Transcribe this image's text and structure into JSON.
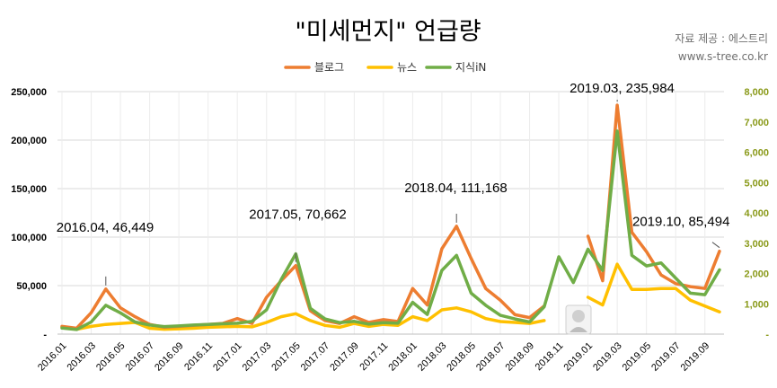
{
  "title": "\"미세먼지\" 언급량",
  "source": {
    "line1": "자료 제공 : 에스트리",
    "line2": "www.s-tree.co.kr"
  },
  "colors": {
    "blog": "#ED7D31",
    "news": "#FFC000",
    "jisik": "#70AD47",
    "grid": "#d9d9d9",
    "right_axis_text": "#8a9a1a"
  },
  "chart_data": {
    "type": "line",
    "x": [
      "2016.01",
      "2016.02",
      "2016.03",
      "2016.04",
      "2016.05",
      "2016.06",
      "2016.07",
      "2016.08",
      "2016.09",
      "2016.10",
      "2016.11",
      "2016.12",
      "2017.01",
      "2017.02",
      "2017.03",
      "2017.04",
      "2017.05",
      "2017.06",
      "2017.07",
      "2017.08",
      "2017.09",
      "2017.10",
      "2017.11",
      "2017.12",
      "2018.01",
      "2018.02",
      "2018.03",
      "2018.04",
      "2018.05",
      "2018.06",
      "2018.07",
      "2018.08",
      "2018.09",
      "2018.10",
      "2018.11",
      "2018.12",
      "2019.01",
      "2019.02",
      "2019.03",
      "2019.04",
      "2019.05",
      "2019.06",
      "2019.07",
      "2019.08",
      "2019.09",
      "2019.10"
    ],
    "x_tick_labels": [
      "2016.01",
      "2016.03",
      "2016.05",
      "2016.07",
      "2016.09",
      "2016.11",
      "2017.01",
      "2017.03",
      "2017.05",
      "2017.07",
      "2017.09",
      "2017.11",
      "2018.01",
      "2018.03",
      "2018.05",
      "2018.07",
      "2018.09",
      "2018.11",
      "2019.01",
      "2019.03",
      "2019.05",
      "2019.07",
      "2019.09"
    ],
    "y_left": {
      "range": [
        0,
        250000
      ],
      "ticks": [
        0,
        50000,
        100000,
        150000,
        200000,
        250000
      ],
      "tick_labels": [
        "-",
        "50,000",
        "100,000",
        "150,000",
        "200,000",
        "250,000"
      ]
    },
    "y_right": {
      "range": [
        0,
        8000
      ],
      "ticks": [
        0,
        1000,
        2000,
        3000,
        4000,
        5000,
        6000,
        7000,
        8000
      ],
      "tick_labels": [
        "-",
        "1,000",
        "2,000",
        "3,000",
        "4,000",
        "5,000",
        "6,000",
        "7,000",
        "8,000"
      ]
    },
    "series": [
      {
        "name": "블로그",
        "axis": "left",
        "values": [
          8000,
          6000,
          22000,
          46449,
          27000,
          18000,
          10000,
          7000,
          8000,
          9000,
          10000,
          11000,
          16000,
          11000,
          38000,
          55000,
          70662,
          24000,
          14000,
          11000,
          18000,
          12000,
          15000,
          13000,
          47000,
          30000,
          88000,
          111168,
          78000,
          47000,
          35000,
          20000,
          17000,
          29000,
          null,
          null,
          101000,
          55000,
          235984,
          105000,
          85000,
          61000,
          52000,
          49000,
          47000,
          85494
        ]
      },
      {
        "name": "뉴스",
        "axis": "left",
        "values": [
          7000,
          5000,
          8000,
          10000,
          11000,
          12000,
          6000,
          5000,
          5500,
          6000,
          7000,
          7500,
          8000,
          7500,
          12000,
          18000,
          21000,
          14000,
          9000,
          7000,
          11000,
          8000,
          10000,
          9000,
          18000,
          14000,
          25000,
          27000,
          23000,
          16000,
          13000,
          12000,
          11000,
          14000,
          null,
          null,
          38000,
          30000,
          72000,
          46000,
          46000,
          47000,
          47000,
          35000,
          29000,
          23000
        ]
      },
      {
        "name": "지식iN",
        "axis": "right",
        "values": [
          200,
          150,
          400,
          950,
          700,
          400,
          300,
          250,
          270,
          300,
          320,
          340,
          360,
          420,
          800,
          1800,
          2650,
          850,
          500,
          380,
          420,
          330,
          380,
          360,
          1050,
          650,
          2100,
          2600,
          1350,
          950,
          620,
          500,
          400,
          900,
          2550,
          1700,
          2800,
          2100,
          6700,
          2600,
          2250,
          2350,
          1850,
          1350,
          1300,
          2120
        ]
      }
    ],
    "annotations": [
      {
        "label": "2016.04,  46,449",
        "series": "블로그",
        "x": "2016.04"
      },
      {
        "label": "2017.05,  70,662",
        "series": "블로그",
        "x": "2017.05"
      },
      {
        "label": "2018.04,  111,168",
        "series": "블로그",
        "x": "2018.04"
      },
      {
        "label": "2019.03,  235,984",
        "series": "블로그",
        "x": "2019.03"
      },
      {
        "label": "2019.10,  85,494",
        "series": "블로그",
        "x": "2019.10"
      }
    ],
    "legend_position": "top-center",
    "grid": true
  }
}
